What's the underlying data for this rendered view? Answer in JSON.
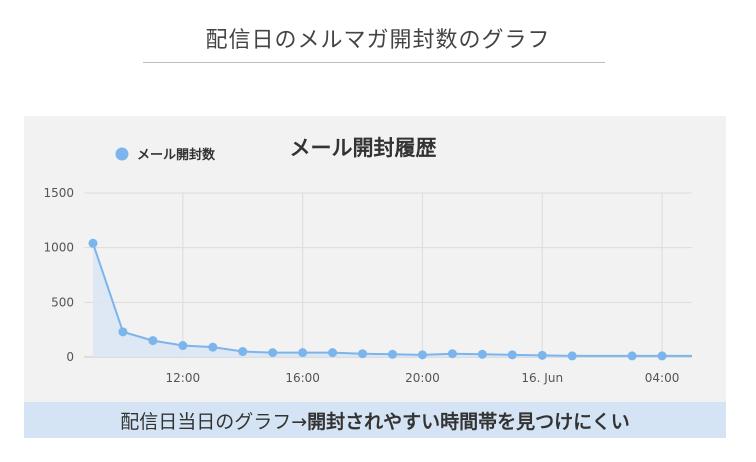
{
  "page": {
    "title": "配信日のメルマガ開封数のグラフ",
    "caption_prefix": "配信日当日のグラフ→",
    "caption_emphasis": "開封されやすい時間帯を見つけにくい"
  },
  "colors": {
    "series": "#7cb5ec",
    "area": "#dbe6f4",
    "panel_bg": "#f2f2f2",
    "caption_bg": "#d5e4f4",
    "grid": "#dcdcdc"
  },
  "chart_data": {
    "type": "area",
    "title": "メール開封履歴",
    "xlabel": "",
    "ylabel": "",
    "legend_position": "top-left",
    "grid": true,
    "ylim": [
      0,
      1500
    ],
    "y_ticks": [
      "0",
      "500",
      "1000",
      "1500"
    ],
    "x_ticks": [
      "12:00",
      "16:00",
      "20:00",
      "16. Jun",
      "04:00"
    ],
    "x_tick_hours": [
      12,
      16,
      20,
      24,
      28
    ],
    "xlim_hours": [
      8.7,
      29
    ],
    "series": [
      {
        "name": "メール開封数",
        "x_hours": [
          9,
          10,
          11,
          12,
          13,
          14,
          15,
          16,
          17,
          18,
          19,
          20,
          21,
          22,
          23,
          24,
          25,
          27,
          28
        ],
        "values": [
          1040,
          230,
          150,
          105,
          90,
          50,
          40,
          40,
          40,
          30,
          25,
          20,
          30,
          25,
          20,
          15,
          10,
          10,
          10
        ]
      }
    ]
  }
}
